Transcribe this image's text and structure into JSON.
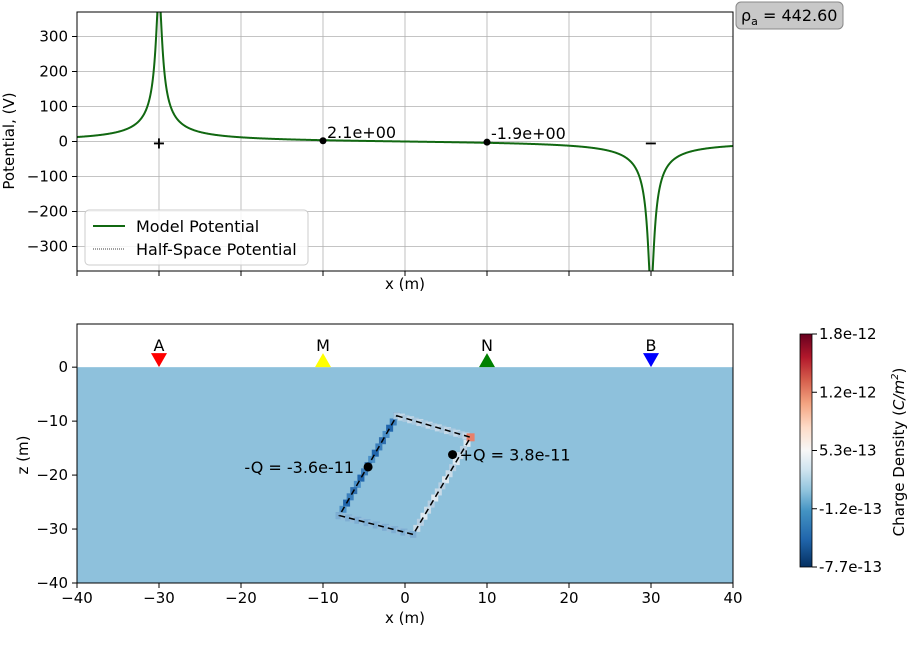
{
  "chart_data": [
    {
      "type": "line",
      "xlabel": "x (m)",
      "ylabel": "Potential, (V)",
      "xlim": [
        -40,
        40
      ],
      "ylim": [
        -370,
        370
      ],
      "xticks": [
        -40,
        -30,
        -20,
        -10,
        0,
        10,
        20,
        30,
        40
      ],
      "yticks": [
        -300,
        -200,
        -100,
        0,
        100,
        200,
        300
      ],
      "yticklabels": [
        "−300",
        "−200",
        "−100",
        "0",
        "100",
        "200",
        "300"
      ],
      "grid": true,
      "legend_position": "bottom-left",
      "series": [
        {
          "name": "Model Potential",
          "color": "#116811",
          "source_x": -30,
          "sink_x": 30,
          "source_peak": 370,
          "sink_peak": -370
        },
        {
          "name": "Half-Space Potential",
          "color": "#000000",
          "style": "dotted"
        }
      ],
      "markers": [
        {
          "label": "+",
          "x": -30,
          "y": 0,
          "color": "#ff0000"
        },
        {
          "label": "−",
          "x": 30,
          "y": 0,
          "color": "#0000ff"
        }
      ],
      "points": [
        {
          "x": -10,
          "y": 2.1,
          "label": "2.1e+00"
        },
        {
          "x": 10,
          "y": -1.9,
          "label": "-1.9e+00"
        }
      ],
      "badge": "ρ",
      "badge_sub": "a",
      "badge_value": " = 442.60"
    },
    {
      "type": "heatmap",
      "xlabel": "x (m)",
      "ylabel": "z (m)",
      "xlim": [
        -40,
        40
      ],
      "ylim": [
        -40,
        8
      ],
      "xticks": [
        -40,
        -30,
        -20,
        -10,
        0,
        10,
        20,
        30,
        40
      ],
      "xticklabels": [
        "−40",
        "−30",
        "−20",
        "−10",
        "0",
        "10",
        "20",
        "30",
        "40"
      ],
      "yticks": [
        -40,
        -30,
        -20,
        -10,
        0
      ],
      "yticklabels": [
        "−40",
        "−30",
        "−20",
        "−10",
        "0"
      ],
      "ground_color": "#8ec1dc",
      "electrodes": [
        {
          "name": "A",
          "x": -30,
          "shape": "down",
          "color": "#ff0000"
        },
        {
          "name": "M",
          "x": -10,
          "shape": "up",
          "color": "#ffff00"
        },
        {
          "name": "N",
          "x": 10,
          "shape": "up",
          "color": "#008000"
        },
        {
          "name": "B",
          "x": 30,
          "shape": "down",
          "color": "#0000ff"
        }
      ],
      "block_corners": [
        [
          -1,
          -9
        ],
        [
          8,
          -13
        ],
        [
          1,
          -31
        ],
        [
          -8,
          -27.5
        ]
      ],
      "charges": [
        {
          "label": "-Q = -3.6e-11",
          "x": -4.5,
          "z": -18.5
        },
        {
          "label": "+Q = 3.8e-11",
          "x": 5.8,
          "z": -16.2
        }
      ],
      "colorbar": {
        "label": "Charge Density (C/m²)",
        "label_main": "Charge Density (",
        "label_unit": "C/m",
        "label_exp": "2",
        "label_close": ")",
        "ticks": [
          "1.8e-12",
          "1.2e-12",
          "5.3e-13",
          "-1.2e-13",
          "-7.7e-13"
        ],
        "colormap": "RdBu_r"
      }
    }
  ]
}
